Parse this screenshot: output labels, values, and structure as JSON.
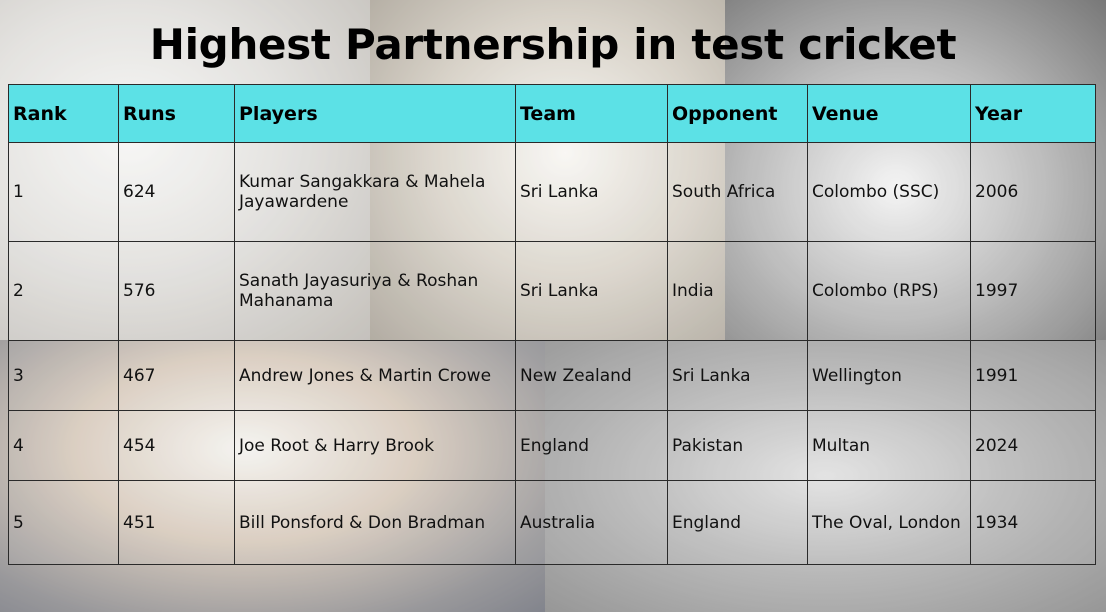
{
  "title": "Highest Partnership in test cricket",
  "columns": [
    "Rank",
    "Runs",
    "Players",
    "Team",
    "Opponent",
    "Venue",
    "Year"
  ],
  "rows": [
    {
      "rank": "1",
      "runs": "624",
      "players": "Kumar Sangakkara & Mahela Jayawardene",
      "team": "Sri Lanka",
      "opponent": "South Africa",
      "venue": "Colombo (SSC)",
      "year": "2006"
    },
    {
      "rank": "2",
      "runs": "576",
      "players": "Sanath Jayasuriya & Roshan Mahanama",
      "team": "Sri Lanka",
      "opponent": "India",
      "venue": "Colombo (RPS)",
      "year": "1997"
    },
    {
      "rank": "3",
      "runs": "467",
      "players": "Andrew Jones & Martin Crowe",
      "team": "New Zealand",
      "opponent": "Sri Lanka",
      "venue": "Wellington",
      "year": "1991"
    },
    {
      "rank": "4",
      "runs": "454",
      "players": "Joe Root & Harry Brook",
      "team": "England",
      "opponent": "Pakistan",
      "venue": "Multan",
      "year": "2024"
    },
    {
      "rank": "5",
      "runs": "451",
      "players": "Bill Ponsford & Don Bradman",
      "team": "Australia",
      "opponent": "England",
      "venue": "The Oval, London",
      "year": "1934"
    }
  ],
  "colors": {
    "header_bg": "#5ce1e6",
    "title": "#000000"
  }
}
